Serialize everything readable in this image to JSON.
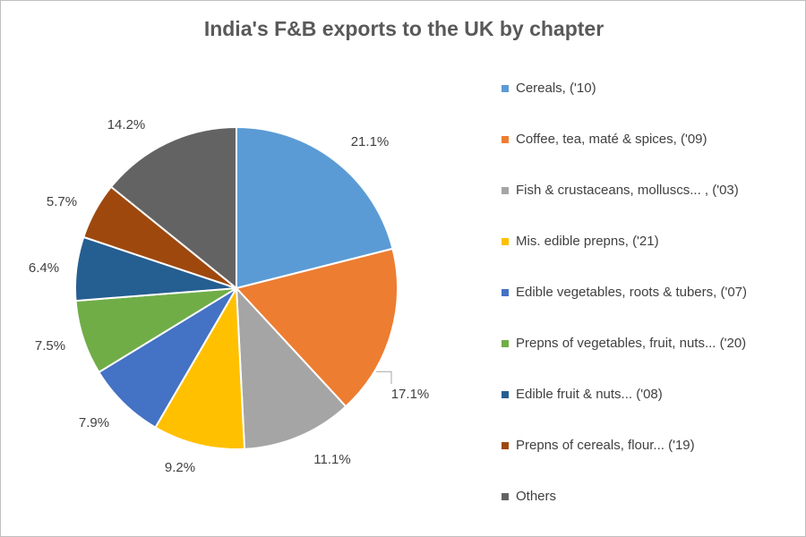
{
  "chart_data": {
    "type": "pie",
    "title": "India's F&B exports to the UK by chapter",
    "slices": [
      {
        "label": "Cereals, ('10)",
        "value": 21.1,
        "value_label": "21.1%",
        "color": "#5b9bd5"
      },
      {
        "label": "Coffee, tea, maté & spices, ('09)",
        "value": 17.1,
        "value_label": "17.1%",
        "color": "#ed7d31"
      },
      {
        "label": "Fish & crustaceans, molluscs... , ('03)",
        "value": 11.1,
        "value_label": "11.1%",
        "color": "#a5a5a5"
      },
      {
        "label": "Mis. edible prepns, ('21)",
        "value": 9.2,
        "value_label": "9.2%",
        "color": "#ffc000"
      },
      {
        "label": "Edible vegetables, roots & tubers, ('07)",
        "value": 7.9,
        "value_label": "7.9%",
        "color": "#4472c4"
      },
      {
        "label": "Prepns of vegetables, fruit, nuts... ('20)",
        "value": 7.5,
        "value_label": "7.5%",
        "color": "#70ad47"
      },
      {
        "label": "Edible fruit & nuts... ('08)",
        "value": 6.4,
        "value_label": "6.4%",
        "color": "#255e91"
      },
      {
        "label": "Prepns of cereals, flour... ('19)",
        "value": 5.7,
        "value_label": "5.7%",
        "color": "#9e480e"
      },
      {
        "label": "Others",
        "value": 14.2,
        "value_label": "14.2%",
        "color": "#636363"
      }
    ],
    "start_angle": "12 o'clock",
    "direction": "clockwise",
    "legend_position": "right"
  }
}
